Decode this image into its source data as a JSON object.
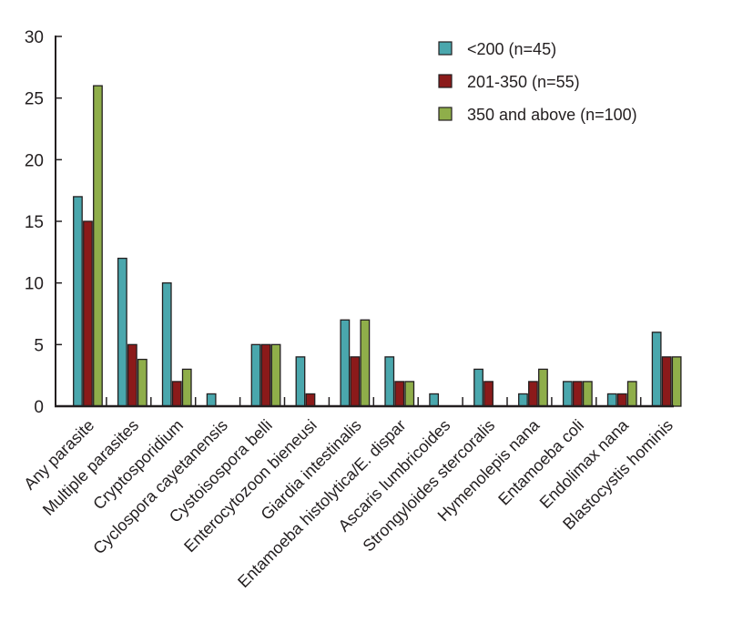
{
  "chart_data": {
    "type": "bar",
    "title": "",
    "xlabel": "",
    "ylabel": "",
    "ylim": [
      0,
      30
    ],
    "yticks": [
      0,
      5,
      10,
      15,
      20,
      25,
      30
    ],
    "grid": false,
    "legend_position": "top-right",
    "categories": [
      "Any parasite",
      "Multiple parasites",
      "Cryptosporidium",
      "Cyclospora cayetanensis",
      "Cystoisospora belli",
      "Enterocytozoon bieneusi",
      "Giardia intestinalis",
      "Entamoeba histolytica/E. dispar",
      "Ascaris lumbricoides",
      "Strongyloides stercoralis",
      "Hymenolepis nana",
      "Entamoeba coli",
      "Endolimax nana",
      "Blastocystis hominis"
    ],
    "series": [
      {
        "name": "<200 (n=45)",
        "color": "#4aa7ad",
        "values": [
          17,
          12,
          10,
          1,
          5,
          4,
          7,
          4,
          1,
          3,
          1,
          2,
          1,
          6
        ]
      },
      {
        "name": "201-350 (n=55)",
        "color": "#8b1a1a",
        "values": [
          15,
          5,
          2,
          0,
          5,
          1,
          4,
          2,
          0,
          2,
          2,
          2,
          1,
          4
        ]
      },
      {
        "name": "350 and above (n=100)",
        "color": "#8fae4a",
        "values": [
          26,
          3.8,
          3,
          0,
          5,
          0,
          7,
          2,
          0,
          0,
          3,
          2,
          2,
          4
        ]
      }
    ]
  }
}
